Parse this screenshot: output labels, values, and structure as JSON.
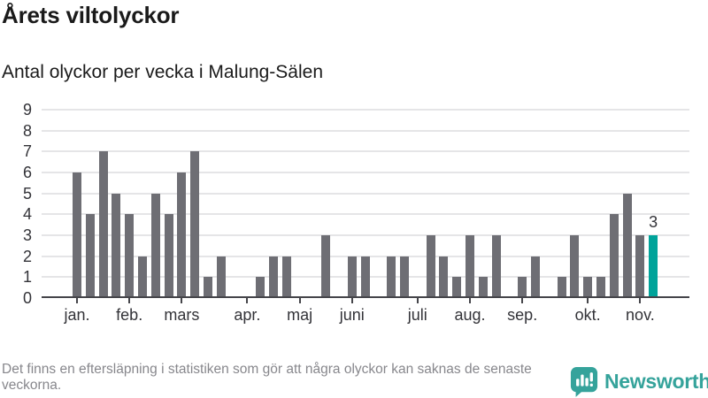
{
  "header": {
    "title": "Årets viltolyckor",
    "subtitle": "Antal olyckor per vecka i Malung-Sälen"
  },
  "chart_data": {
    "type": "bar",
    "title": "Årets viltolyckor",
    "subtitle": "Antal olyckor per vecka i Malung-Sälen",
    "x_unit": "vecka (week of year, 1-45)",
    "ylim": [
      0,
      9
    ],
    "yticks": [
      0,
      1,
      2,
      3,
      4,
      5,
      6,
      7,
      8,
      9
    ],
    "grid": true,
    "values": [
      6,
      4,
      7,
      5,
      4,
      2,
      5,
      4,
      6,
      7,
      1,
      2,
      0,
      0,
      1,
      2,
      2,
      0,
      0,
      3,
      0,
      2,
      2,
      0,
      2,
      2,
      0,
      3,
      2,
      1,
      3,
      1,
      3,
      0,
      1,
      2,
      0,
      1,
      3,
      1,
      1,
      4,
      5,
      3,
      3
    ],
    "month_ticks": [
      {
        "label": "jan.",
        "week": 1
      },
      {
        "label": "feb.",
        "week": 5
      },
      {
        "label": "mars",
        "week": 9
      },
      {
        "label": "apr.",
        "week": 14
      },
      {
        "label": "maj",
        "week": 18
      },
      {
        "label": "juni",
        "week": 22
      },
      {
        "label": "juli",
        "week": 27
      },
      {
        "label": "aug.",
        "week": 31
      },
      {
        "label": "sep.",
        "week": 35
      },
      {
        "label": "okt.",
        "week": 40
      },
      {
        "label": "nov.",
        "week": 44
      }
    ],
    "highlight_last_bar": true,
    "last_bar_label": "3",
    "legend": "none"
  },
  "footer": {
    "note": "Det finns en eftersläpning i statistiken som gör att några olyckor kan saknas de senaste veckorna.",
    "brand": "Newsworthy"
  },
  "colors": {
    "bar": "#6e6e74",
    "highlight": "#00a39a",
    "grid": "#e5e5e7",
    "axis": "#45454a",
    "label": "#333338",
    "text": "#1a1a1a",
    "muted": "#87878c",
    "brand": "#35a39b"
  }
}
